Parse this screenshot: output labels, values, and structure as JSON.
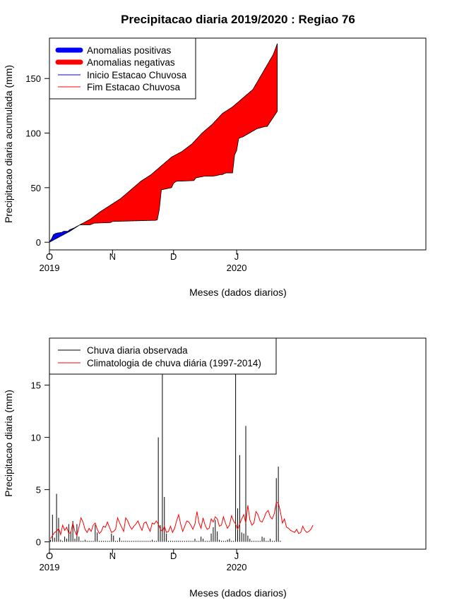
{
  "colors": {
    "positive": "#0000ff",
    "negative": "#ff0000",
    "observed": "#000000",
    "climatology": "#ff0000",
    "background": "#ffffff"
  },
  "chart_data": [
    {
      "type": "area",
      "title": "Precipitacao diaria 2019/2020 : Regiao 76",
      "xlabel": "Meses (dados diarios)",
      "ylabel": "Precipitacao diaria acumulada (mm)",
      "xlim": [
        0,
        185
      ],
      "ylim": [
        -7,
        187
      ],
      "yticks": [
        0,
        50,
        100,
        150
      ],
      "month_ticks": [
        {
          "day": 0,
          "label": "O",
          "year": "2019"
        },
        {
          "day": 31,
          "label": "N",
          "year": ""
        },
        {
          "day": 61,
          "label": "D",
          "year": ""
        },
        {
          "day": 92,
          "label": "J",
          "year": "2020"
        }
      ],
      "legend": [
        {
          "label": "Anomalias positivas",
          "style": "thick",
          "color": "#0000ff"
        },
        {
          "label": "Anomalias negativas",
          "style": "thick",
          "color": "#ff0000"
        },
        {
          "label": "Inicio Estacao Chuvosa",
          "style": "thin",
          "color": "#0000ff"
        },
        {
          "label": "Fim Estacao Chuvosa",
          "style": "thin",
          "color": "#ff0000"
        }
      ],
      "observed_cumulative": {
        "days": [
          0,
          1,
          2,
          3,
          4,
          6,
          7,
          9,
          10,
          12,
          15,
          20,
          22,
          30,
          31,
          40,
          50,
          52,
          53,
          54,
          55,
          60,
          61,
          62,
          63,
          64,
          65,
          71,
          72,
          75,
          76,
          80,
          82,
          84,
          85,
          86,
          87,
          90,
          91,
          92,
          93,
          94,
          95,
          102,
          103,
          104,
          105,
          106,
          107,
          112
        ],
        "values": [
          0.5,
          3,
          7,
          8,
          8.5,
          9,
          10,
          10,
          11.5,
          13,
          16,
          16,
          17.5,
          18,
          19,
          19.5,
          20,
          20,
          20.5,
          30,
          48,
          50,
          54,
          55.5,
          56,
          56,
          56,
          56.5,
          59,
          60,
          60.5,
          60.5,
          61,
          62,
          62,
          63,
          63.5,
          63.5,
          80,
          84,
          95,
          96,
          96.5,
          104,
          104.5,
          105,
          105.5,
          106,
          106,
          120
        ]
      },
      "climatology_cumulative": {
        "days": [
          0,
          5,
          10,
          15,
          20,
          25,
          30,
          35,
          40,
          45,
          50,
          55,
          60,
          65,
          70,
          75,
          80,
          85,
          90,
          95,
          100,
          105,
          110,
          112
        ],
        "values": [
          0,
          5,
          10,
          16,
          21,
          28,
          34,
          40,
          48,
          56,
          62,
          70,
          78,
          83,
          90,
          100,
          108,
          118,
          124,
          132,
          140,
          156,
          172,
          182
        ]
      }
    },
    {
      "type": "bar+line",
      "xlabel": "Meses (dados diarios)",
      "ylabel": "Precipitacao diaria (mm)",
      "xlim": [
        0,
        185
      ],
      "ylim": [
        -0.7,
        19.5
      ],
      "yticks": [
        0,
        5,
        10,
        15
      ],
      "month_ticks": [
        {
          "day": 0,
          "label": "O",
          "year": "2019"
        },
        {
          "day": 31,
          "label": "N",
          "year": ""
        },
        {
          "day": 61,
          "label": "D",
          "year": ""
        },
        {
          "day": 92,
          "label": "J",
          "year": "2020"
        }
      ],
      "legend": [
        {
          "label": "Chuva diaria observada",
          "style": "thin",
          "color": "#000000"
        },
        {
          "label": "Climatologia de chuva diária (1997-2014)",
          "style": "thin",
          "color": "#ff0000"
        }
      ],
      "observed_daily": [
        0.2,
        2.6,
        0.4,
        4.6,
        2.3,
        0.2,
        0.1,
        0.5,
        0.3,
        1.7,
        1.0,
        2.0,
        0.3,
        1.7,
        0.5,
        0.1,
        0.1,
        0.2,
        0.1,
        0.1,
        0.1,
        0.1,
        1.6,
        0.9,
        0.1,
        0.1,
        0.1,
        0.1,
        0.1,
        0.1,
        0.8,
        0.6,
        0.1,
        0.1,
        0.4,
        0.1,
        0.1,
        0.1,
        0.1,
        0.1,
        0.1,
        0.1,
        0.1,
        0.1,
        0.1,
        0.1,
        0.1,
        0.1,
        0.1,
        0.1,
        0.2,
        0.1,
        0.1,
        10.0,
        1.6,
        19.0,
        4.3,
        0.8,
        0.1,
        0.1,
        0.1,
        0.1,
        0.1,
        0.1,
        0.1,
        0.1,
        0.1,
        0.1,
        0.1,
        0.1,
        0.1,
        0.3,
        0.1,
        0.1,
        0.5,
        0.3,
        0.1,
        0.1,
        0.1,
        0.8,
        1.4,
        2.1,
        1.0,
        0.2,
        0.1,
        0.1,
        0.1,
        0.2,
        0.3,
        0.1,
        0.1,
        17.4,
        3.2,
        8.3,
        0.9,
        0.8,
        11.1,
        0.6,
        0.3,
        0.1,
        0.1,
        0.1,
        0.1,
        0.1,
        0.5,
        0.4,
        0.1,
        0.1,
        0.3,
        0.1,
        0.1,
        6.1,
        7.2,
        0.1
      ],
      "climatology_daily": [
        0.3,
        0.6,
        0.9,
        1.0,
        1.3,
        0.7,
        1.6,
        1.1,
        1.4,
        0.8,
        0.9,
        1.8,
        1.0,
        0.6,
        1.4,
        2.3,
        1.9,
        1.2,
        0.9,
        1.3,
        1.0,
        1.6,
        1.8,
        1.2,
        0.8,
        1.0,
        1.5,
        1.4,
        1.9,
        1.4,
        0.9,
        1.0,
        1.2,
        2.3,
        1.8,
        1.4,
        1.0,
        2.3,
        2.0,
        1.5,
        1.2,
        1.5,
        1.7,
        2.0,
        1.5,
        1.1,
        1.8,
        1.9,
        1.4,
        1.0,
        1.8,
        1.7,
        2.0,
        1.7,
        1.2,
        1.0,
        1.5,
        0.9,
        1.0,
        1.5,
        0.9,
        1.3,
        2.0,
        2.6,
        1.7,
        1.0,
        1.5,
        2.0,
        1.9,
        1.6,
        1.2,
        1.7,
        2.9,
        1.8,
        1.3,
        2.3,
        1.6,
        1.2,
        1.3,
        2.2,
        1.9,
        2.4,
        2.2,
        1.5,
        1.6,
        2.4,
        1.8,
        1.3,
        1.6,
        2.5,
        2.0,
        1.7,
        1.2,
        1.7,
        2.2,
        2.6,
        1.8,
        3.5,
        2.1,
        1.6,
        1.8,
        2.9,
        2.6,
        2.0,
        1.9,
        2.3,
        2.8,
        3.0,
        2.4,
        2.2,
        2.7,
        3.8,
        3.7,
        2.9,
        1.8,
        2.2,
        1.4,
        1.3,
        1.1,
        1.0,
        0.9,
        1.2,
        0.8,
        0.9,
        1.5,
        1.1,
        0.9,
        1.0,
        1.2,
        1.6
      ]
    }
  ]
}
